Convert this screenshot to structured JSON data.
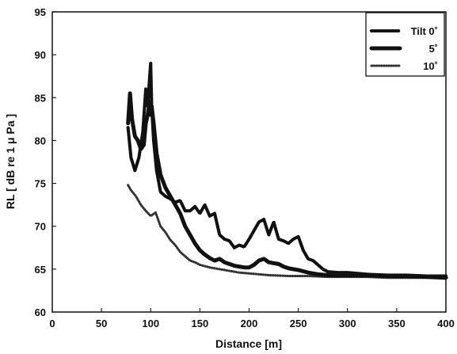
{
  "chart_data": {
    "type": "line",
    "title": "",
    "xlabel": "Distance [m]",
    "ylabel": "RL [ dB re 1 μ Pa ]",
    "xlim": [
      0,
      400
    ],
    "ylim": [
      60,
      95
    ],
    "grid": false,
    "legend_position": "top-right",
    "xticks": [
      "0",
      "50",
      "100",
      "150",
      "200",
      "250",
      "300",
      "350",
      "400"
    ],
    "yticks": [
      "60",
      "65",
      "70",
      "75",
      "80",
      "85",
      "90",
      "95"
    ],
    "series": [
      {
        "name": "Tilt 0˚",
        "style": "dotted",
        "color": "#111111",
        "x": [
          77,
          80,
          84,
          88,
          92,
          95,
          97,
          99,
          100,
          101,
          103,
          106,
          110,
          115,
          120,
          125,
          130,
          135,
          140,
          145,
          150,
          155,
          160,
          165,
          170,
          175,
          180,
          185,
          190,
          195,
          200,
          205,
          210,
          215,
          220,
          225,
          230,
          235,
          240,
          245,
          250,
          255,
          260,
          265,
          270,
          275,
          280,
          290,
          300,
          320,
          340,
          360,
          380,
          400
        ],
        "y": [
          81.5,
          78.0,
          76.5,
          78.0,
          81.0,
          86.0,
          84.0,
          87.5,
          89.0,
          84.0,
          80.0,
          76.5,
          74.0,
          73.5,
          73.2,
          72.8,
          73.0,
          71.8,
          71.8,
          72.3,
          71.5,
          72.5,
          71.2,
          71.5,
          69.0,
          68.5,
          68.3,
          67.5,
          67.8,
          67.6,
          68.5,
          69.5,
          70.5,
          70.8,
          69.0,
          70.5,
          68.5,
          68.3,
          68.0,
          68.5,
          68.8,
          67.2,
          66.2,
          66.0,
          65.5,
          65.0,
          64.7,
          64.6,
          64.6,
          64.4,
          64.3,
          64.3,
          64.2,
          64.2
        ]
      },
      {
        "name": "5˚",
        "style": "thick",
        "color": "#111111",
        "x": [
          77,
          79,
          81,
          84,
          87,
          90,
          93,
          95,
          97,
          99,
          100,
          101,
          103,
          106,
          110,
          115,
          120,
          125,
          130,
          135,
          140,
          145,
          150,
          155,
          160,
          165,
          170,
          175,
          180,
          185,
          190,
          195,
          200,
          205,
          210,
          215,
          220,
          225,
          230,
          235,
          240,
          245,
          250,
          260,
          270,
          280,
          300,
          320,
          340,
          360,
          380,
          400
        ],
        "y": [
          82.0,
          85.5,
          82.5,
          80.5,
          80.0,
          79.0,
          79.5,
          82.0,
          83.0,
          84.5,
          83.0,
          84.0,
          82.0,
          78.5,
          76.0,
          74.5,
          73.5,
          72.5,
          71.5,
          70.0,
          69.0,
          68.0,
          67.2,
          66.7,
          66.3,
          66.0,
          66.2,
          65.8,
          65.6,
          65.4,
          65.3,
          65.2,
          65.2,
          65.5,
          66.0,
          66.2,
          65.8,
          65.7,
          65.6,
          65.3,
          65.1,
          65.0,
          64.9,
          64.6,
          64.4,
          64.3,
          64.3,
          64.3,
          64.2,
          64.2,
          64.1,
          64.0
        ]
      },
      {
        "name": "10˚",
        "style": "dotted-light",
        "color": "#111111",
        "x": [
          77,
          80,
          85,
          90,
          95,
          100,
          105,
          110,
          115,
          120,
          125,
          130,
          135,
          140,
          145,
          150,
          160,
          170,
          180,
          190,
          200,
          210,
          220,
          240,
          260,
          280,
          300,
          320,
          340,
          360,
          380,
          400
        ],
        "y": [
          74.8,
          74.2,
          73.5,
          72.5,
          71.8,
          71.2,
          71.6,
          70.0,
          69.3,
          68.4,
          67.8,
          67.0,
          66.5,
          66.0,
          65.8,
          65.5,
          65.2,
          65.0,
          64.8,
          64.6,
          64.5,
          64.4,
          64.3,
          64.2,
          64.2,
          64.1,
          64.1,
          64.1,
          64.0,
          64.0,
          64.0,
          64.0
        ]
      }
    ]
  }
}
